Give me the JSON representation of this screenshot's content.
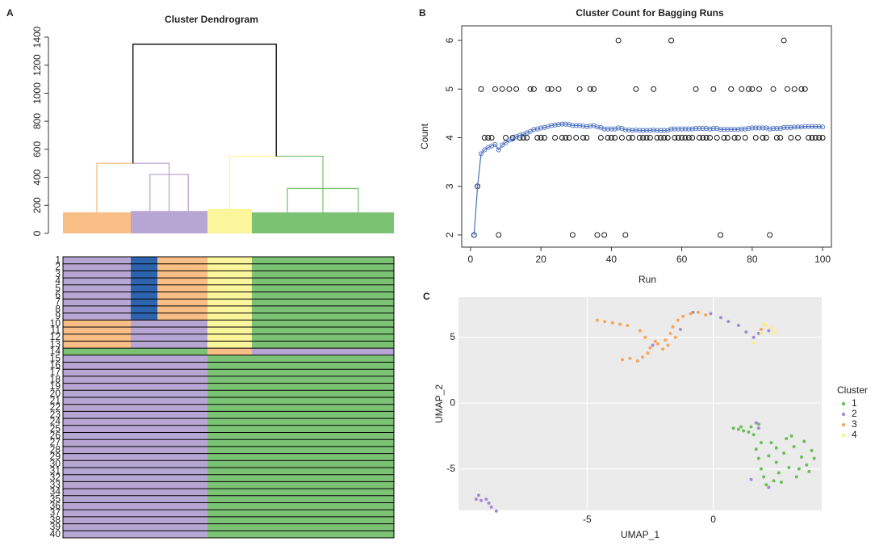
{
  "chart_data": [
    {
      "type": "dendrogram",
      "label": "A",
      "title": "Cluster Dendrogram",
      "ylim": [
        0,
        1400
      ],
      "yticks": [
        0,
        200,
        400,
        600,
        800,
        1000,
        1200,
        1400
      ],
      "groups": [
        84,
        33,
        62,
        55,
        176
      ],
      "clusters": [
        {
          "color": "#f9be86",
          "groups": [
            0
          ],
          "leaf_top": 150,
          "top": 150
        },
        {
          "color": "#b7a6d3",
          "groups": [
            1,
            2
          ],
          "leaf_top": 160,
          "top": 420
        },
        {
          "color": "#fbf59b",
          "groups": [
            3
          ],
          "leaf_top": 175,
          "top": 175
        },
        {
          "color": "#7cc275",
          "groups": [
            4
          ],
          "leaf_top": 150,
          "top": 320
        }
      ],
      "merges": [
        {
          "height": 500,
          "children": [
            0,
            1
          ],
          "color": "#000000"
        },
        {
          "height": 550,
          "children": [
            2,
            3
          ],
          "color": "#000000"
        },
        {
          "height": 1350,
          "children": [
            4,
            5
          ]
        }
      ],
      "heatmap": {
        "cluster_colors": {
          "1": "#7cc275",
          "2": "#b7a6d3",
          "3": "#f9be86",
          "4": "#fbf59b",
          "5": "#2d64ad"
        },
        "row_labels": [
          "1",
          "2",
          "3",
          "4",
          "5",
          "6",
          "7",
          "8",
          "9",
          "10",
          "11",
          "12",
          "13",
          "14",
          "15",
          "16",
          "17",
          "18",
          "19",
          "20",
          "21",
          "22",
          "23",
          "24",
          "25",
          "26",
          "27",
          "28",
          "29",
          "30",
          "31",
          "32",
          "33",
          "34",
          "35",
          "36",
          "37",
          "38",
          "39",
          "40"
        ],
        "rows": [
          [
            2,
            5,
            3,
            4,
            1
          ],
          [
            2,
            5,
            3,
            4,
            1
          ],
          [
            2,
            5,
            3,
            4,
            1
          ],
          [
            2,
            5,
            3,
            4,
            1
          ],
          [
            2,
            5,
            3,
            4,
            1
          ],
          [
            2,
            5,
            3,
            4,
            1
          ],
          [
            2,
            5,
            3,
            4,
            1
          ],
          [
            2,
            5,
            3,
            4,
            1
          ],
          [
            2,
            5,
            3,
            4,
            1
          ],
          [
            3,
            2,
            2,
            4,
            1
          ],
          [
            3,
            2,
            2,
            4,
            1
          ],
          [
            3,
            2,
            2,
            4,
            1
          ],
          [
            3,
            2,
            2,
            4,
            1
          ],
          [
            1,
            1,
            1,
            3,
            2
          ],
          [
            2,
            2,
            2,
            1,
            1
          ],
          [
            2,
            2,
            2,
            1,
            1
          ],
          [
            2,
            2,
            2,
            1,
            1
          ],
          [
            2,
            2,
            2,
            1,
            1
          ],
          [
            2,
            2,
            2,
            1,
            1
          ],
          [
            2,
            2,
            2,
            1,
            1
          ],
          [
            2,
            2,
            2,
            1,
            1
          ],
          [
            2,
            2,
            2,
            1,
            1
          ],
          [
            2,
            2,
            2,
            1,
            1
          ],
          [
            2,
            2,
            2,
            1,
            1
          ],
          [
            2,
            2,
            2,
            1,
            1
          ],
          [
            2,
            2,
            2,
            1,
            1
          ],
          [
            2,
            2,
            2,
            1,
            1
          ],
          [
            2,
            2,
            2,
            1,
            1
          ],
          [
            2,
            2,
            2,
            1,
            1
          ],
          [
            2,
            2,
            2,
            1,
            1
          ],
          [
            2,
            2,
            2,
            1,
            1
          ],
          [
            2,
            2,
            2,
            1,
            1
          ],
          [
            2,
            2,
            2,
            1,
            1
          ],
          [
            2,
            2,
            2,
            1,
            1
          ],
          [
            2,
            2,
            2,
            1,
            1
          ],
          [
            2,
            2,
            2,
            1,
            1
          ],
          [
            2,
            2,
            2,
            1,
            1
          ],
          [
            2,
            2,
            2,
            1,
            1
          ],
          [
            2,
            2,
            2,
            1,
            1
          ],
          [
            2,
            2,
            2,
            1,
            1
          ]
        ]
      }
    },
    {
      "type": "scatter",
      "label": "B",
      "title": "Cluster Count for Bagging Runs",
      "x_label": "Run",
      "y_label": "Count",
      "box": true,
      "xlim": [
        -2.5,
        102.5
      ],
      "xticks": [
        0,
        20,
        40,
        60,
        80,
        100
      ],
      "ylim": [
        1.75,
        6.3
      ],
      "yticks": [
        2,
        3,
        4,
        5,
        6
      ],
      "x": [
        1,
        2,
        3,
        4,
        5,
        6,
        7,
        8,
        9,
        10,
        11,
        12,
        13,
        14,
        15,
        16,
        17,
        18,
        19,
        20,
        21,
        22,
        23,
        24,
        25,
        26,
        27,
        28,
        29,
        30,
        31,
        32,
        33,
        34,
        35,
        36,
        37,
        38,
        39,
        40,
        41,
        42,
        43,
        44,
        45,
        46,
        47,
        48,
        49,
        50,
        51,
        52,
        53,
        54,
        55,
        56,
        57,
        58,
        59,
        60,
        61,
        62,
        63,
        64,
        65,
        66,
        67,
        68,
        69,
        70,
        71,
        72,
        73,
        74,
        75,
        76,
        77,
        78,
        79,
        80,
        81,
        82,
        83,
        84,
        85,
        86,
        87,
        88,
        89,
        90,
        91,
        92,
        93,
        94,
        95,
        96,
        97,
        98,
        99,
        100
      ],
      "series": [
        {
          "color": "#000000",
          "radius": 3,
          "values": [
            2,
            3,
            5,
            4,
            4,
            4,
            5,
            2,
            5,
            4,
            5,
            4,
            5,
            4,
            4,
            4,
            5,
            5,
            4,
            4,
            4,
            5,
            5,
            4,
            5,
            4,
            4,
            4,
            2,
            4,
            5,
            4,
            4,
            5,
            5,
            2,
            4,
            2,
            4,
            4,
            4,
            6,
            4,
            2,
            4,
            4,
            5,
            4,
            4,
            4,
            4,
            5,
            4,
            4,
            4,
            4,
            6,
            4,
            4,
            4,
            4,
            4,
            4,
            5,
            4,
            4,
            4,
            4,
            5,
            4,
            2,
            4,
            4,
            5,
            4,
            4,
            5,
            4,
            5,
            5,
            4,
            5,
            4,
            4,
            2,
            5,
            4,
            4,
            6,
            5,
            4,
            5,
            4,
            5,
            5,
            4,
            4,
            4,
            4,
            4
          ]
        },
        {
          "color": "#4a6fc0",
          "radius": 2.6,
          "line": true,
          "values": [
            2,
            3,
            3.67,
            3.75,
            3.8,
            3.83,
            3.86,
            3.75,
            3.85,
            3.9,
            3.95,
            3.97,
            4.02,
            4.05,
            4.07,
            4.1,
            4.13,
            4.17,
            4.18,
            4.2,
            4.21,
            4.23,
            4.25,
            4.26,
            4.27,
            4.28,
            4.28,
            4.27,
            4.25,
            4.25,
            4.25,
            4.24,
            4.23,
            4.24,
            4.25,
            4.22,
            4.21,
            4.18,
            4.18,
            4.18,
            4.18,
            4.2,
            4.19,
            4.16,
            4.16,
            4.15,
            4.16,
            4.15,
            4.15,
            4.15,
            4.15,
            4.16,
            4.15,
            4.15,
            4.15,
            4.15,
            4.18,
            4.18,
            4.18,
            4.18,
            4.18,
            4.18,
            4.18,
            4.19,
            4.19,
            4.19,
            4.19,
            4.18,
            4.19,
            4.19,
            4.17,
            4.17,
            4.17,
            4.17,
            4.17,
            4.17,
            4.18,
            4.18,
            4.19,
            4.2,
            4.2,
            4.2,
            4.2,
            4.2,
            4.18,
            4.19,
            4.19,
            4.19,
            4.21,
            4.21,
            4.21,
            4.22,
            4.22,
            4.22,
            4.23,
            4.23,
            4.23,
            4.23,
            4.23,
            4.22
          ]
        }
      ]
    },
    {
      "type": "scatter",
      "label": "C",
      "x_label": "UMAP_1",
      "y_label": "UMAP_2",
      "background": "#ebebeb",
      "grid": true,
      "legend_title": "Cluster",
      "xlim": [
        -10.1,
        4.3
      ],
      "xticks": [
        -5,
        0
      ],
      "ylim": [
        -8.15,
        8.05
      ],
      "yticks": [
        -5,
        0,
        5
      ],
      "series": [
        {
          "name": "1",
          "color": "#6cbf5a",
          "points": [
            [
              0.8,
              -1.9
            ],
            [
              1.0,
              -2.0
            ],
            [
              1.2,
              -2.1
            ],
            [
              1.4,
              -2.2
            ],
            [
              1.6,
              -2.4
            ],
            [
              1.1,
              -1.8
            ],
            [
              1.5,
              -1.8
            ],
            [
              1.8,
              -1.6
            ],
            [
              1.7,
              -3.5
            ],
            [
              1.8,
              -4.2
            ],
            [
              1.9,
              -5.0
            ],
            [
              2.0,
              -5.6
            ],
            [
              2.1,
              -6.2
            ],
            [
              2.3,
              -3.0
            ],
            [
              2.5,
              -4.5
            ],
            [
              2.6,
              -5.3
            ],
            [
              2.8,
              -3.8
            ],
            [
              2.9,
              -2.7
            ],
            [
              3.0,
              -4.9
            ],
            [
              3.2,
              -3.3
            ],
            [
              3.3,
              -5.6
            ],
            [
              3.5,
              -4.1
            ],
            [
              3.6,
              -2.9
            ],
            [
              3.7,
              -4.7
            ],
            [
              3.9,
              -3.6
            ],
            [
              4.0,
              -4.2
            ],
            [
              3.4,
              -5.0
            ],
            [
              2.4,
              -5.9
            ],
            [
              2.2,
              -4.0
            ],
            [
              2.7,
              -6.0
            ],
            [
              1.9,
              -3.0
            ],
            [
              3.1,
              -2.5
            ],
            [
              3.8,
              -5.2
            ],
            [
              2.5,
              -3.4
            ]
          ]
        },
        {
          "name": "2",
          "color": "#a48cd3",
          "points": [
            [
              -0.8,
              6.9
            ],
            [
              -0.1,
              6.8
            ],
            [
              0.3,
              6.5
            ],
            [
              0.6,
              6.2
            ],
            [
              1.0,
              5.9
            ],
            [
              1.3,
              5.4
            ],
            [
              1.6,
              5.0
            ],
            [
              1.8,
              5.3
            ],
            [
              2.2,
              5.5
            ],
            [
              -1.3,
              5.6
            ],
            [
              -2.4,
              4.4
            ],
            [
              -9.3,
              -7.0
            ],
            [
              -9.2,
              -7.4
            ],
            [
              -9.0,
              -7.3
            ],
            [
              -8.9,
              -7.6
            ],
            [
              -8.8,
              -7.9
            ],
            [
              -8.6,
              -8.2
            ],
            [
              -9.4,
              -7.3
            ],
            [
              1.7,
              -1.5
            ],
            [
              1.8,
              -1.9
            ],
            [
              2.2,
              -6.4
            ],
            [
              1.5,
              -5.8
            ]
          ]
        },
        {
          "name": "3",
          "color": "#f9a65a",
          "points": [
            [
              -4.6,
              6.3
            ],
            [
              -4.3,
              6.2
            ],
            [
              -4.0,
              6.1
            ],
            [
              -3.7,
              6.0
            ],
            [
              -3.4,
              5.9
            ],
            [
              -3.6,
              3.3
            ],
            [
              -3.3,
              3.4
            ],
            [
              -3.0,
              3.2
            ],
            [
              -2.8,
              3.5
            ],
            [
              -2.6,
              3.8
            ],
            [
              -2.5,
              4.2
            ],
            [
              -2.2,
              4.5
            ],
            [
              -2.0,
              4.1
            ],
            [
              -1.9,
              4.8
            ],
            [
              -1.7,
              5.3
            ],
            [
              -1.6,
              5.8
            ],
            [
              -1.4,
              6.3
            ],
            [
              -1.8,
              4.4
            ],
            [
              -2.3,
              4.7
            ],
            [
              -1.2,
              6.6
            ],
            [
              -0.9,
              6.8
            ],
            [
              -0.6,
              6.9
            ],
            [
              -0.3,
              6.7
            ],
            [
              -2.9,
              5.5
            ],
            [
              -2.7,
              5.0
            ],
            [
              1.9,
              5.6
            ],
            [
              -1.5,
              5.0
            ]
          ]
        },
        {
          "name": "4",
          "color": "#f7f08a",
          "points": [
            [
              1.9,
              5.3
            ],
            [
              2.1,
              5.9
            ],
            [
              2.3,
              5.7
            ],
            [
              2.5,
              5.5
            ],
            [
              1.6,
              4.6
            ],
            [
              2.0,
              6.0
            ],
            [
              2.4,
              5.3
            ]
          ]
        }
      ]
    }
  ]
}
